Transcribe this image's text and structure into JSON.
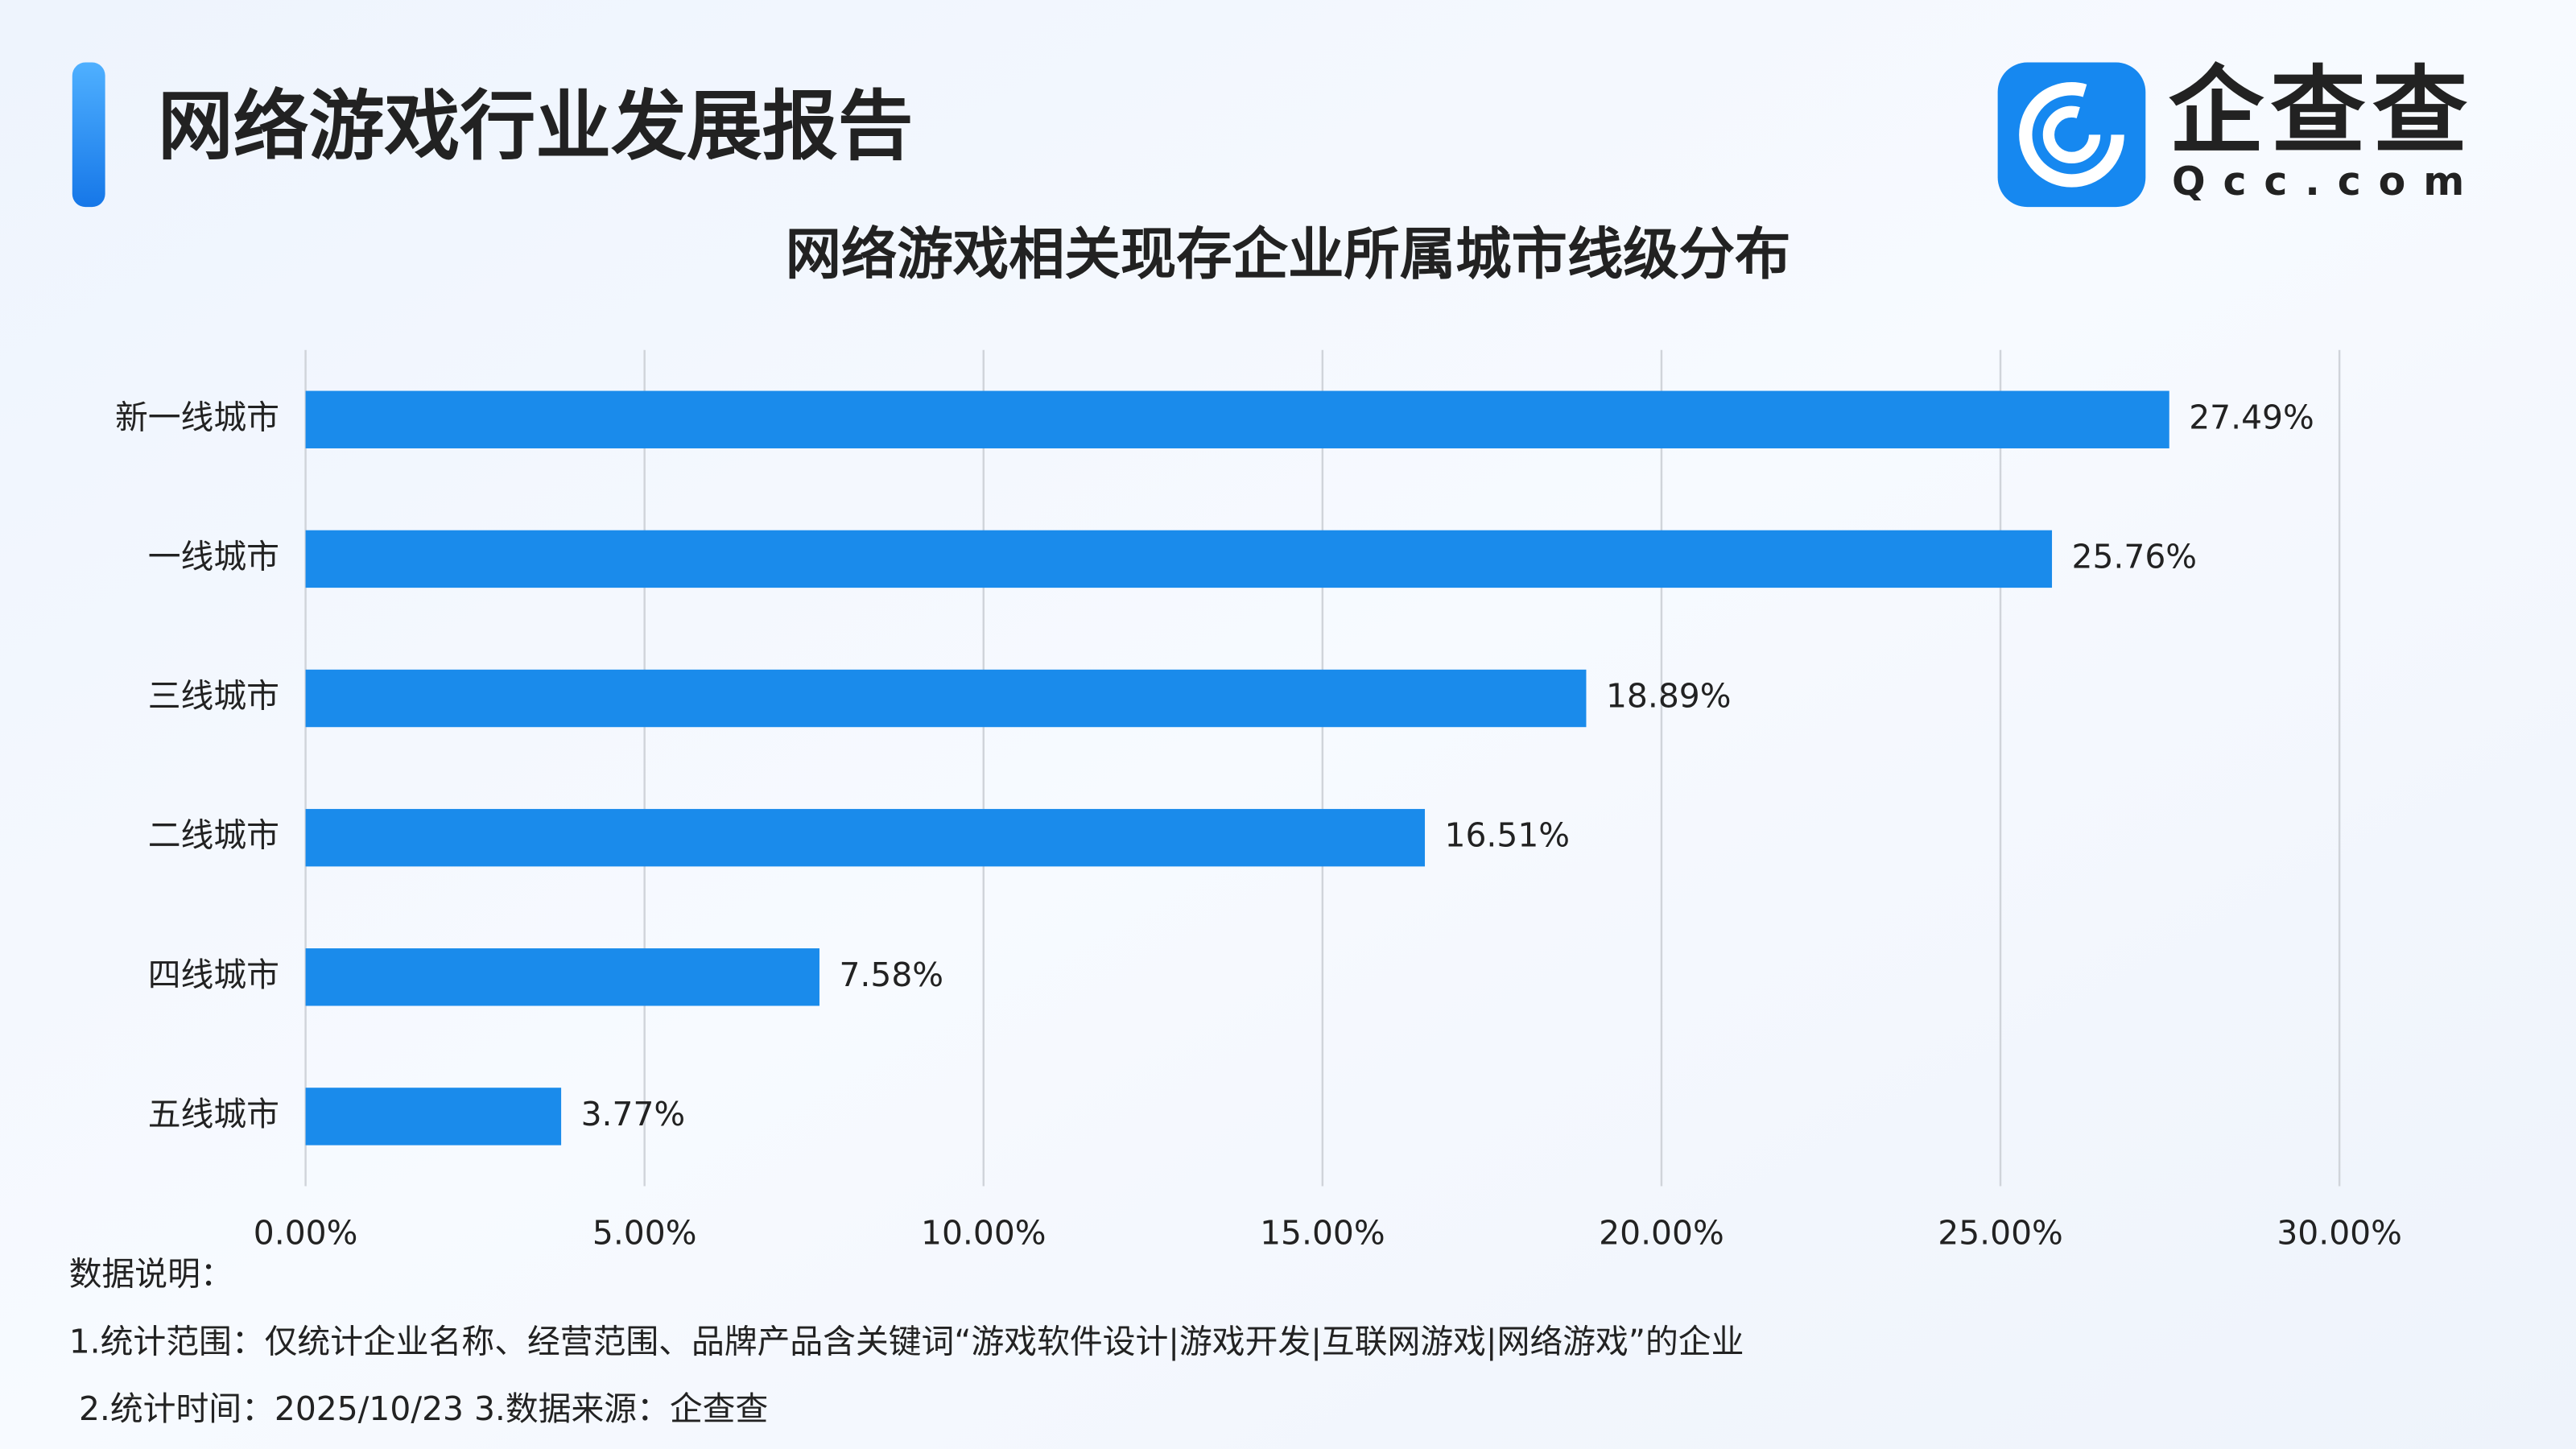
{
  "header": {
    "title": "网络游戏行业发展报告",
    "logo_text": "企查查",
    "logo_sub": "Qcc.com"
  },
  "chart_data": {
    "type": "hbar",
    "title": "网络游戏相关现存企业所属城市线级分布",
    "categories": [
      "新一线城市",
      "一线城市",
      "三线城市",
      "二线城市",
      "四线城市",
      "五线城市"
    ],
    "values": [
      27.49,
      25.76,
      18.89,
      16.51,
      7.58,
      3.77
    ],
    "value_labels": [
      "27.49%",
      "25.76%",
      "18.89%",
      "16.51%",
      "7.58%",
      "3.77%"
    ],
    "color": "#1a8beb",
    "xlim": [
      0,
      30
    ],
    "xticks": [
      {
        "value": 0,
        "label": "0.00%"
      },
      {
        "value": 5,
        "label": "5.00%"
      },
      {
        "value": 10,
        "label": "10.00%"
      },
      {
        "value": 15,
        "label": "15.00%"
      },
      {
        "value": 20,
        "label": "20.00%"
      },
      {
        "value": 25,
        "label": "25.00%"
      },
      {
        "value": 30,
        "label": "30.00%"
      }
    ],
    "grid": true
  },
  "notes": [
    "数据说明：",
    "1.统计范围：仅统计企业名称、经营范围、品牌产品含关键词“游戏软件设计|游戏开发|互联网游戏|网络游戏”的企业",
    "2.统计时间：2025/10/23 3.数据来源：企查查"
  ]
}
